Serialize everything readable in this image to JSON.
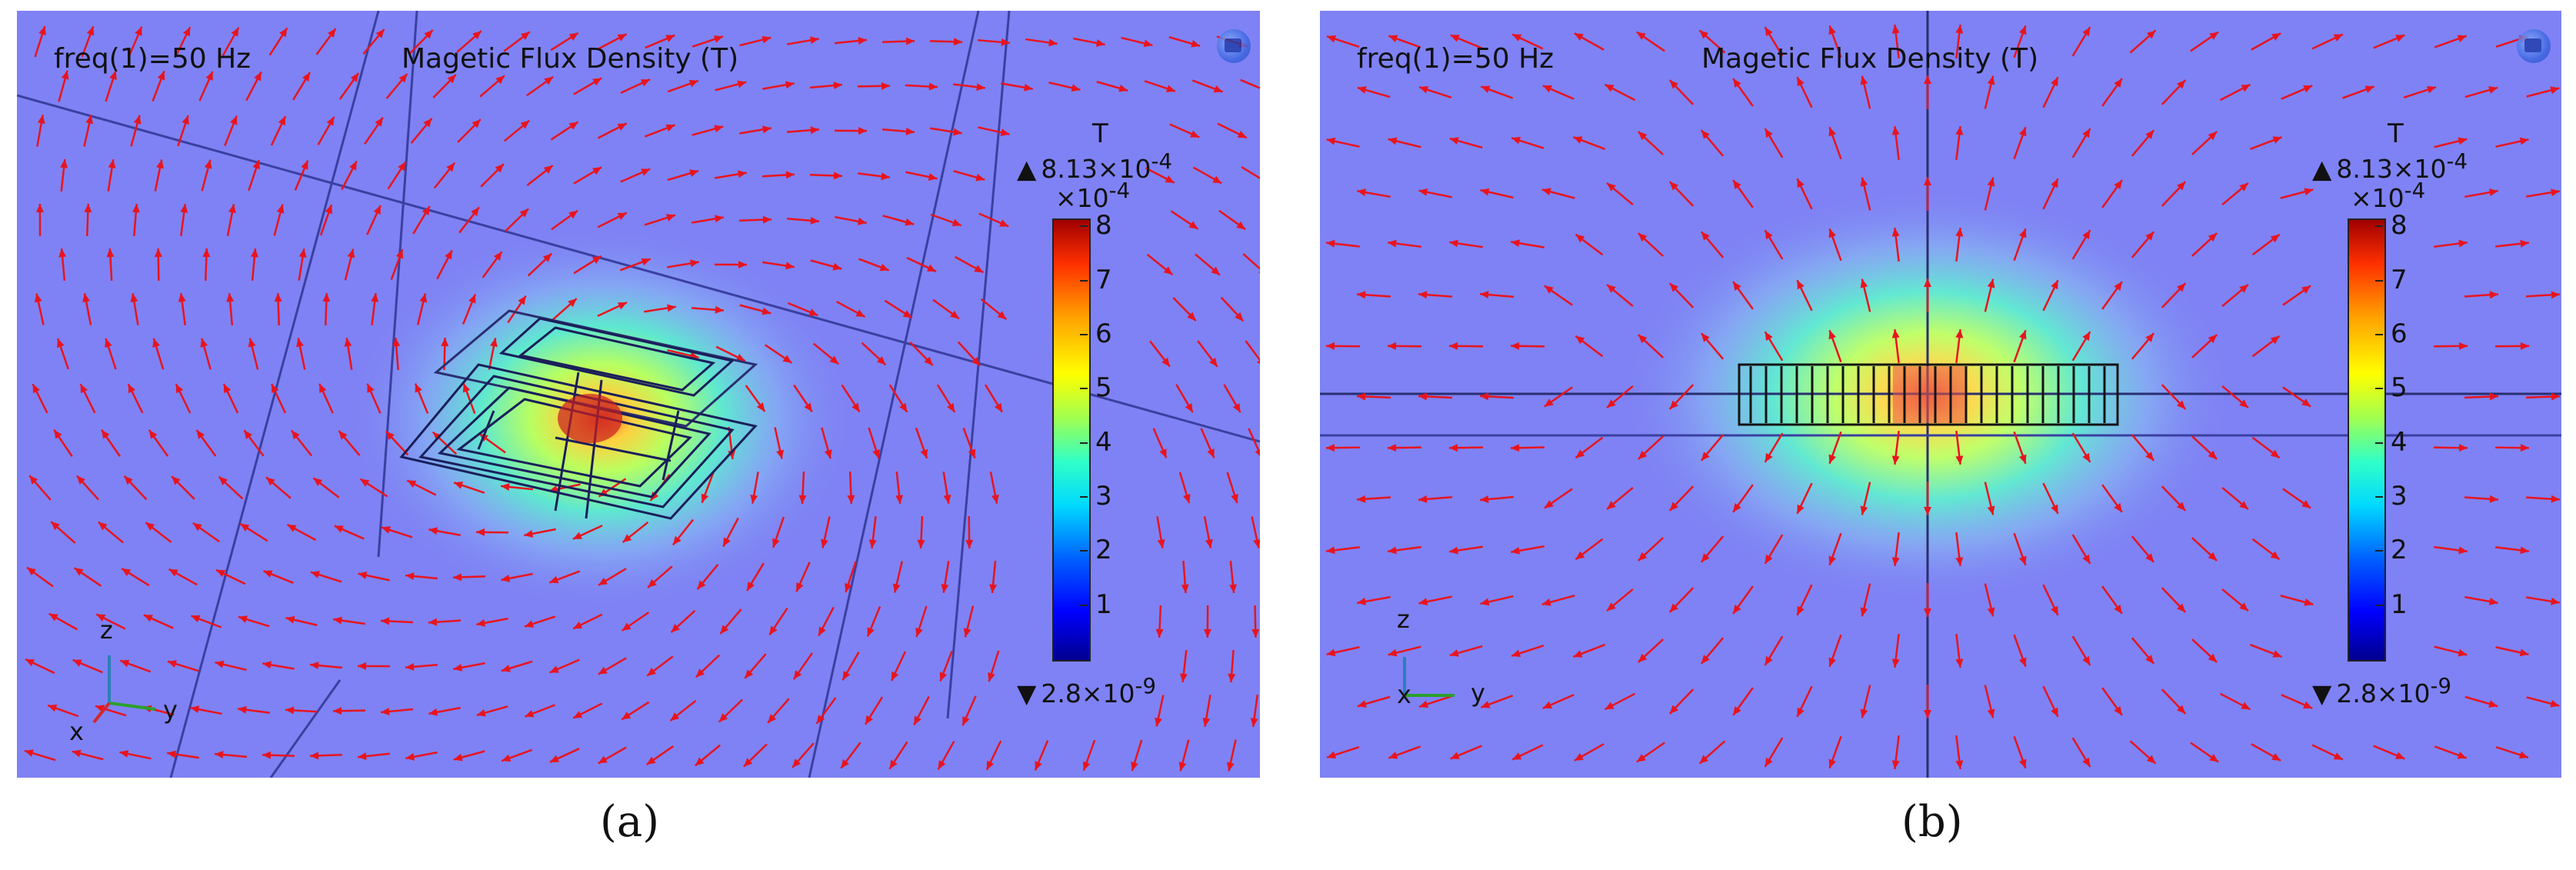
{
  "panels": [
    {
      "id": "a",
      "freq_label": "freq(1)=50 Hz",
      "title": "Magetic Flux Density (T)",
      "caption": "(a)",
      "view": "3D",
      "colorbar": {
        "unit": "T",
        "max_label": "8.13×10",
        "max_exp": "-4",
        "scale_label": "×10",
        "scale_exp": "-4",
        "min_label": "2.8×10",
        "min_exp": "-9",
        "ticks": [
          "1",
          "2",
          "3",
          "4",
          "5",
          "6",
          "7",
          "8"
        ]
      },
      "axes": {
        "x": "x",
        "y": "y",
        "z": "z"
      }
    },
    {
      "id": "b",
      "freq_label": "freq(1)=50 Hz",
      "title": "Magetic Flux Density (T)",
      "caption": "(b)",
      "view": "2D side",
      "colorbar": {
        "unit": "T",
        "max_label": "8.13×10",
        "max_exp": "-4",
        "scale_label": "×10",
        "scale_exp": "-4",
        "min_label": "2.8×10",
        "min_exp": "-9",
        "ticks": [
          "1",
          "2",
          "3",
          "4",
          "5",
          "6",
          "7",
          "8"
        ]
      },
      "axes": {
        "x": "x",
        "y": "y",
        "z": "z"
      }
    }
  ],
  "colors": {
    "background_field": "#7f82f4",
    "arrow": "#e8141e",
    "hot": "#d02020",
    "grid_line": "#3a40a0"
  },
  "icons": {
    "max_marker": "triangle-up-icon",
    "min_marker": "triangle-down-icon",
    "logo": "comsol-logo-icon"
  }
}
